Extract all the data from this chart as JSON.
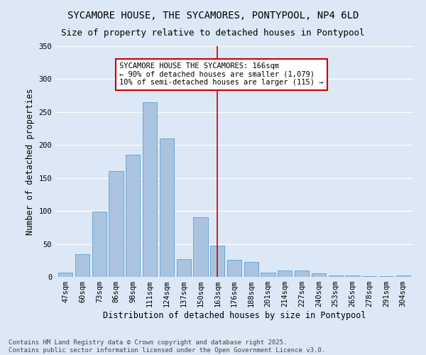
{
  "title": "SYCAMORE HOUSE, THE SYCAMORES, PONTYPOOL, NP4 6LD",
  "subtitle": "Size of property relative to detached houses in Pontypool",
  "xlabel": "Distribution of detached houses by size in Pontypool",
  "ylabel": "Number of detached properties",
  "categories": [
    "47sqm",
    "60sqm",
    "73sqm",
    "86sqm",
    "98sqm",
    "111sqm",
    "124sqm",
    "137sqm",
    "150sqm",
    "163sqm",
    "176sqm",
    "188sqm",
    "201sqm",
    "214sqm",
    "227sqm",
    "240sqm",
    "253sqm",
    "265sqm",
    "278sqm",
    "291sqm",
    "304sqm"
  ],
  "values": [
    6,
    35,
    99,
    160,
    185,
    265,
    210,
    27,
    90,
    47,
    26,
    23,
    6,
    10,
    10,
    5,
    2,
    2,
    1,
    1,
    2
  ],
  "bar_color": "#aac4e0",
  "bar_edge_color": "#5a9fd4",
  "vline_index": 9,
  "vline_color": "#cc0000",
  "annotation_line1": "SYCAMORE HOUSE THE SYCAMORES: 166sqm",
  "annotation_line2": "← 90% of detached houses are smaller (1,079)",
  "annotation_line3": "10% of semi-detached houses are larger (115) →",
  "annotation_box_color": "#ffffff",
  "annotation_box_edge": "#cc0000",
  "ylim": [
    0,
    350
  ],
  "yticks": [
    0,
    50,
    100,
    150,
    200,
    250,
    300,
    350
  ],
  "bg_color": "#dce8f5",
  "grid_color": "#ffffff",
  "footer": "Contains HM Land Registry data © Crown copyright and database right 2025.\nContains public sector information licensed under the Open Government Licence v3.0.",
  "title_fontsize": 10,
  "subtitle_fontsize": 9,
  "axis_label_fontsize": 8.5,
  "tick_fontsize": 7.5,
  "annotation_fontsize": 7.5,
  "footer_fontsize": 6.5
}
